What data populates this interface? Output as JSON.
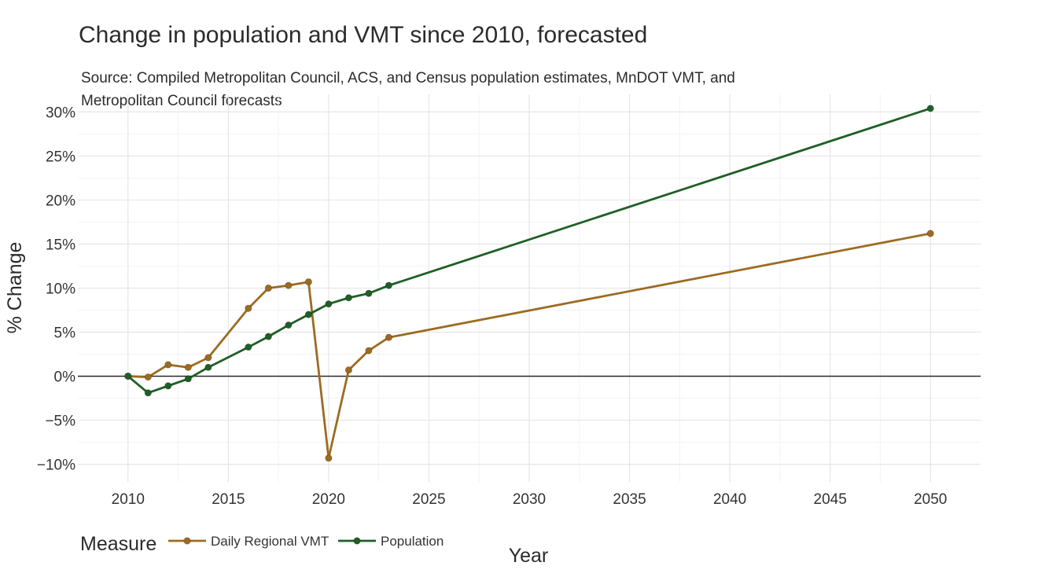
{
  "chart_data": {
    "type": "line",
    "title": "Change in population and VMT since 2010, forecasted",
    "subtitle": "Source: Compiled Metropolitan Council, ACS, and Census population estimates, MnDOT VMT, and Metropolitan Council forecasts",
    "xlabel": "Year",
    "ylabel": "% Change",
    "xlim": [
      2007.5,
      2052.5
    ],
    "ylim": [
      -12,
      32
    ],
    "x_ticks": [
      2010,
      2015,
      2020,
      2025,
      2030,
      2035,
      2040,
      2045,
      2050
    ],
    "x_tick_labels": [
      "2010",
      "2015",
      "2020",
      "2025",
      "2030",
      "2035",
      "2040",
      "2045",
      "2050"
    ],
    "y_ticks": [
      -10,
      -5,
      0,
      5,
      10,
      15,
      20,
      25,
      30
    ],
    "y_tick_labels": [
      "−10%",
      "−5%",
      "0%",
      "5%",
      "10%",
      "15%",
      "20%",
      "25%",
      "30%"
    ],
    "grid": true,
    "zero_line": true,
    "legend": {
      "title": "Measure",
      "position": "bottom-left"
    },
    "series": [
      {
        "name": "Daily Regional VMT",
        "color": "#9c6b22",
        "points": [
          {
            "x": 2010,
            "y": 0.0
          },
          {
            "x": 2011,
            "y": -0.1
          },
          {
            "x": 2012,
            "y": 1.3
          },
          {
            "x": 2013,
            "y": 1.0
          },
          {
            "x": 2014,
            "y": 2.1
          },
          {
            "x": 2016,
            "y": 7.7
          },
          {
            "x": 2017,
            "y": 10.0
          },
          {
            "x": 2018,
            "y": 10.3
          },
          {
            "x": 2019,
            "y": 10.7
          },
          {
            "x": 2020,
            "y": -9.3
          },
          {
            "x": 2021,
            "y": 0.7
          },
          {
            "x": 2022,
            "y": 2.9
          },
          {
            "x": 2023,
            "y": 4.4
          },
          {
            "x": 2050,
            "y": 16.2
          }
        ]
      },
      {
        "name": "Population",
        "color": "#1f5f26",
        "points": [
          {
            "x": 2010,
            "y": 0.0
          },
          {
            "x": 2011,
            "y": -1.9
          },
          {
            "x": 2012,
            "y": -1.1
          },
          {
            "x": 2013,
            "y": -0.3
          },
          {
            "x": 2014,
            "y": 1.0
          },
          {
            "x": 2016,
            "y": 3.3
          },
          {
            "x": 2017,
            "y": 4.5
          },
          {
            "x": 2018,
            "y": 5.8
          },
          {
            "x": 2019,
            "y": 7.0
          },
          {
            "x": 2020,
            "y": 8.2
          },
          {
            "x": 2021,
            "y": 8.9
          },
          {
            "x": 2022,
            "y": 9.4
          },
          {
            "x": 2023,
            "y": 10.3
          },
          {
            "x": 2050,
            "y": 30.4
          }
        ]
      }
    ]
  }
}
